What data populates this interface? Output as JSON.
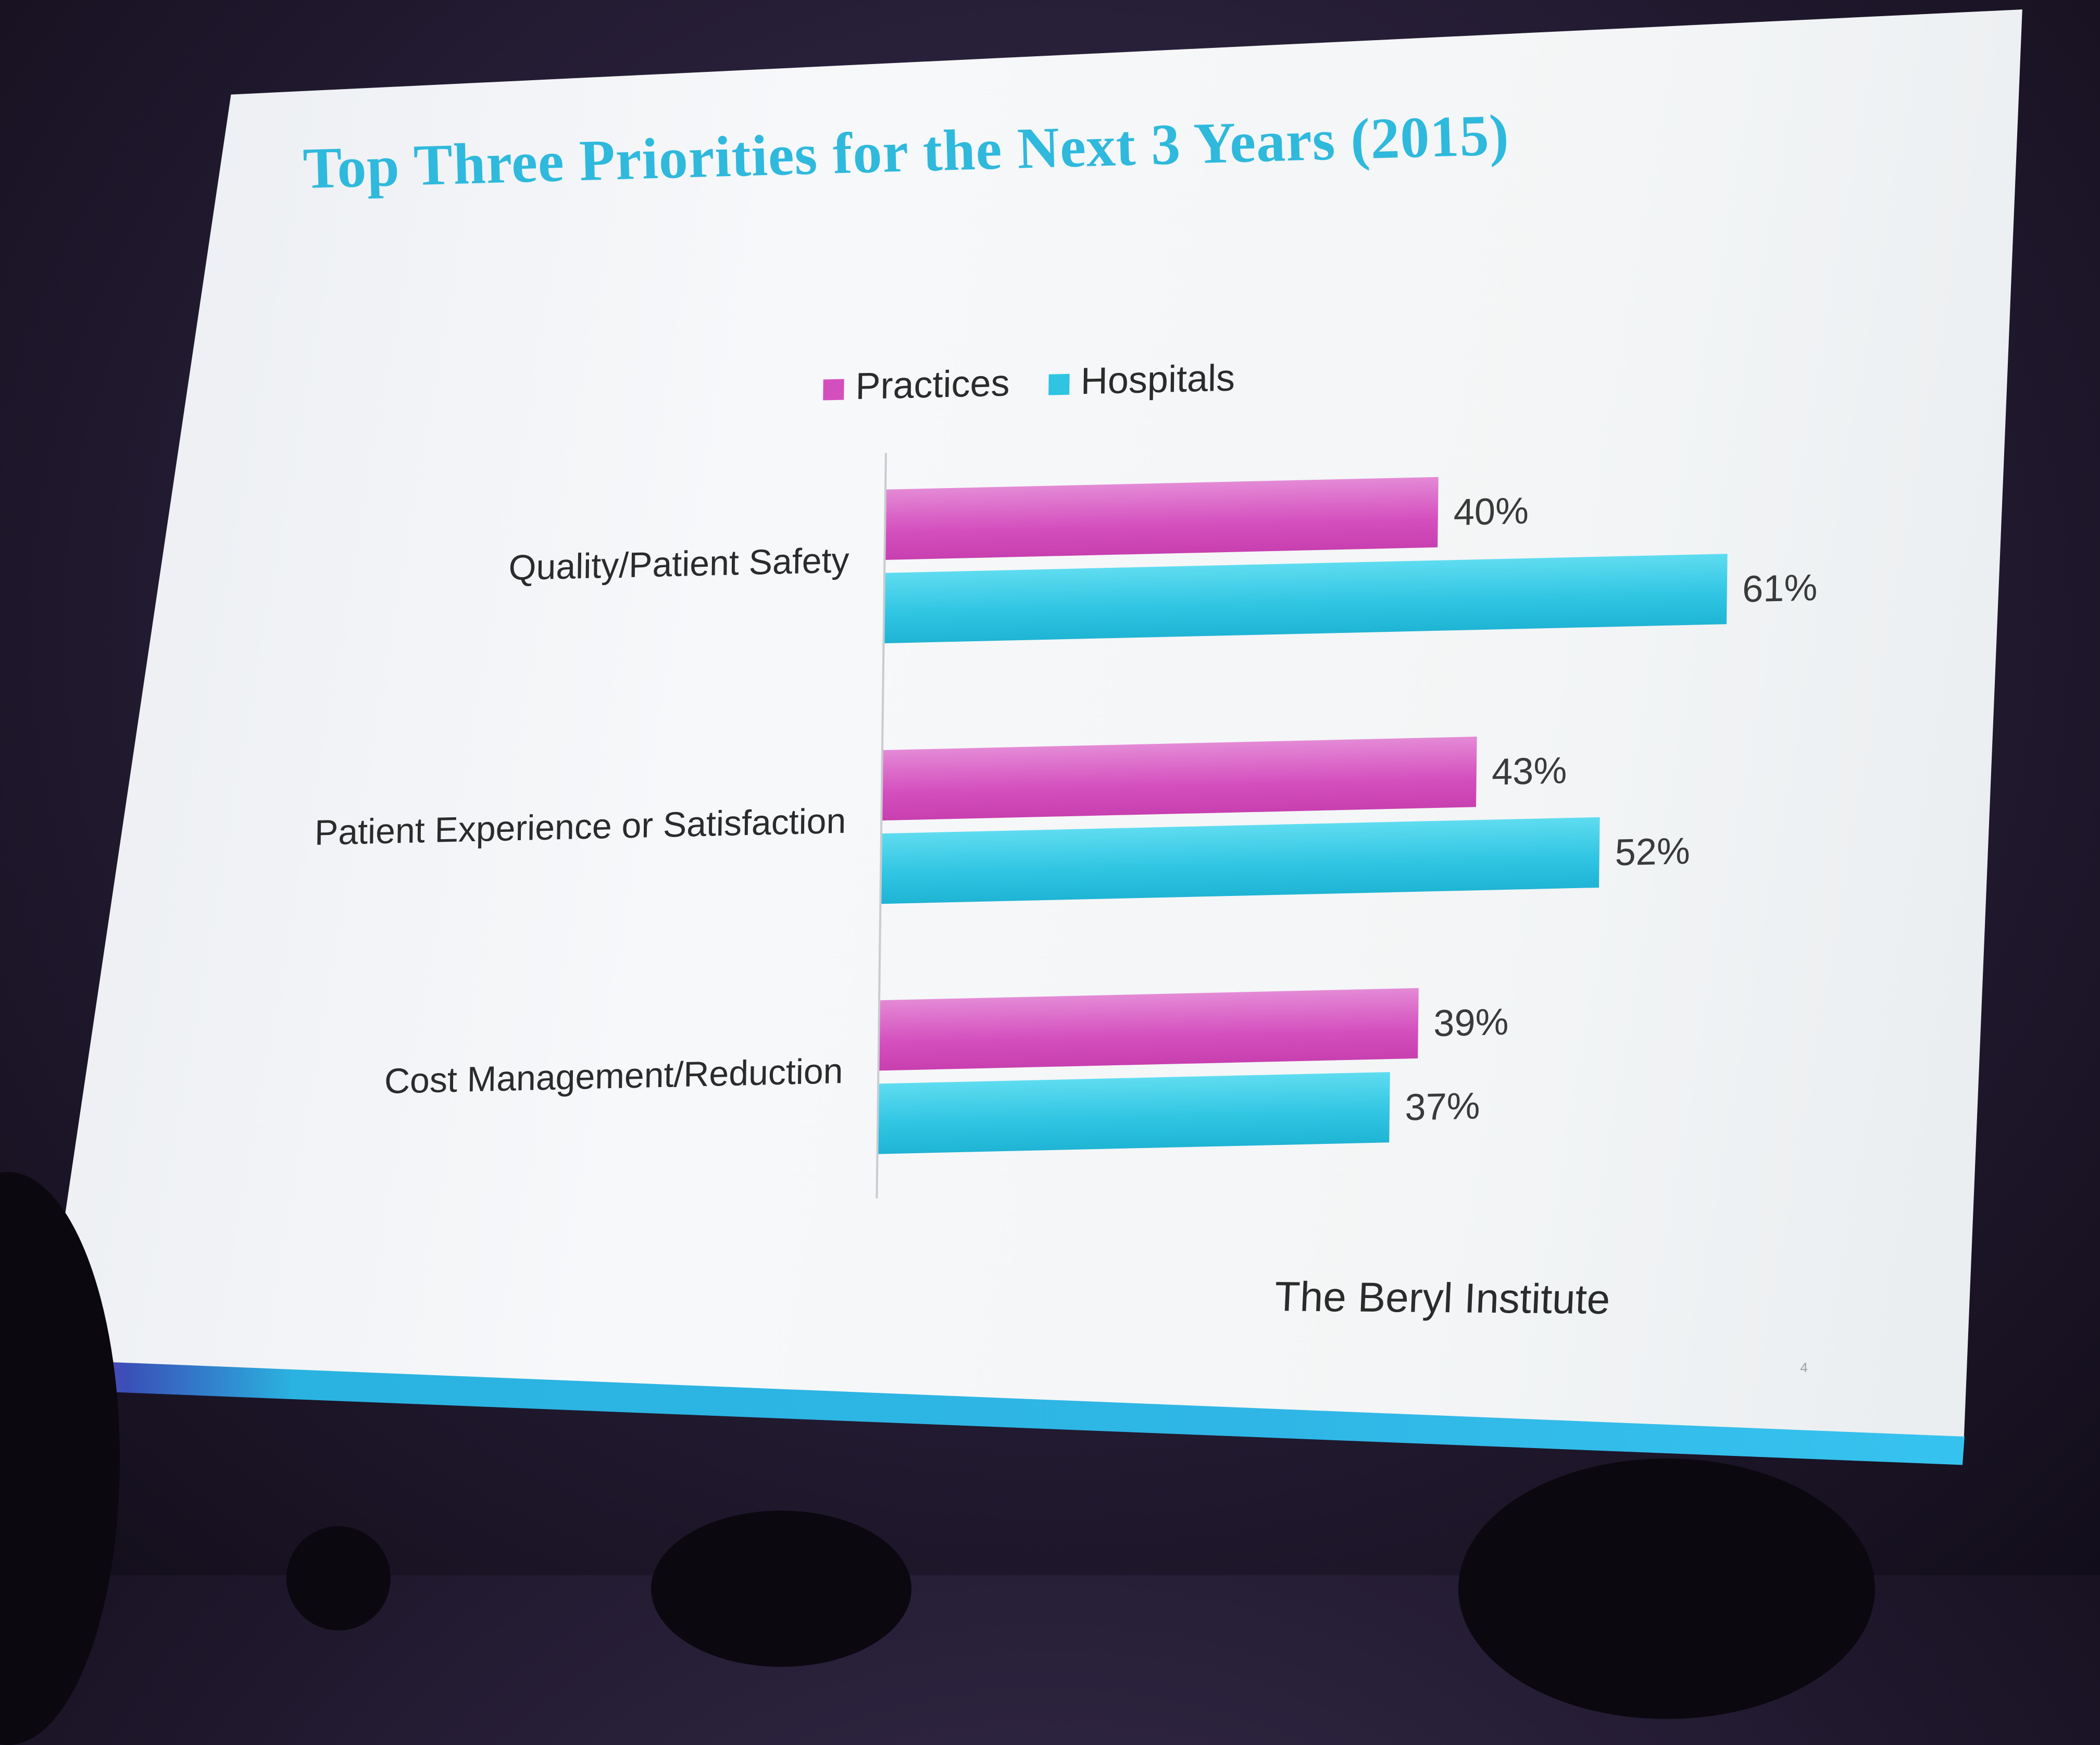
{
  "slide": {
    "title": "Top Three Priorities for the Next 3 Years (2015)",
    "source": "The Beryl Institute",
    "page_number": "4"
  },
  "legend": {
    "practices": "Practices",
    "hospitals": "Hospitals"
  },
  "colors": {
    "practices": "#d44fbe",
    "hospitals": "#2ec4e2",
    "title": "#2fb9dc"
  },
  "chart_data": {
    "type": "bar",
    "orientation": "horizontal",
    "title": "Top Three Priorities for the Next 3 Years (2015)",
    "categories": [
      "Quality/Patient Safety",
      "Patient Experience or Satisfaction",
      "Cost Management/Reduction"
    ],
    "series": [
      {
        "name": "Practices",
        "values": [
          40,
          43,
          39
        ],
        "labels": [
          "40%",
          "43%",
          "39%"
        ]
      },
      {
        "name": "Hospitals",
        "values": [
          61,
          52,
          37
        ],
        "labels": [
          "61%",
          "52%",
          "37%"
        ]
      }
    ],
    "xlim": [
      0,
      70
    ],
    "legend_position": "top",
    "grid": false
  }
}
